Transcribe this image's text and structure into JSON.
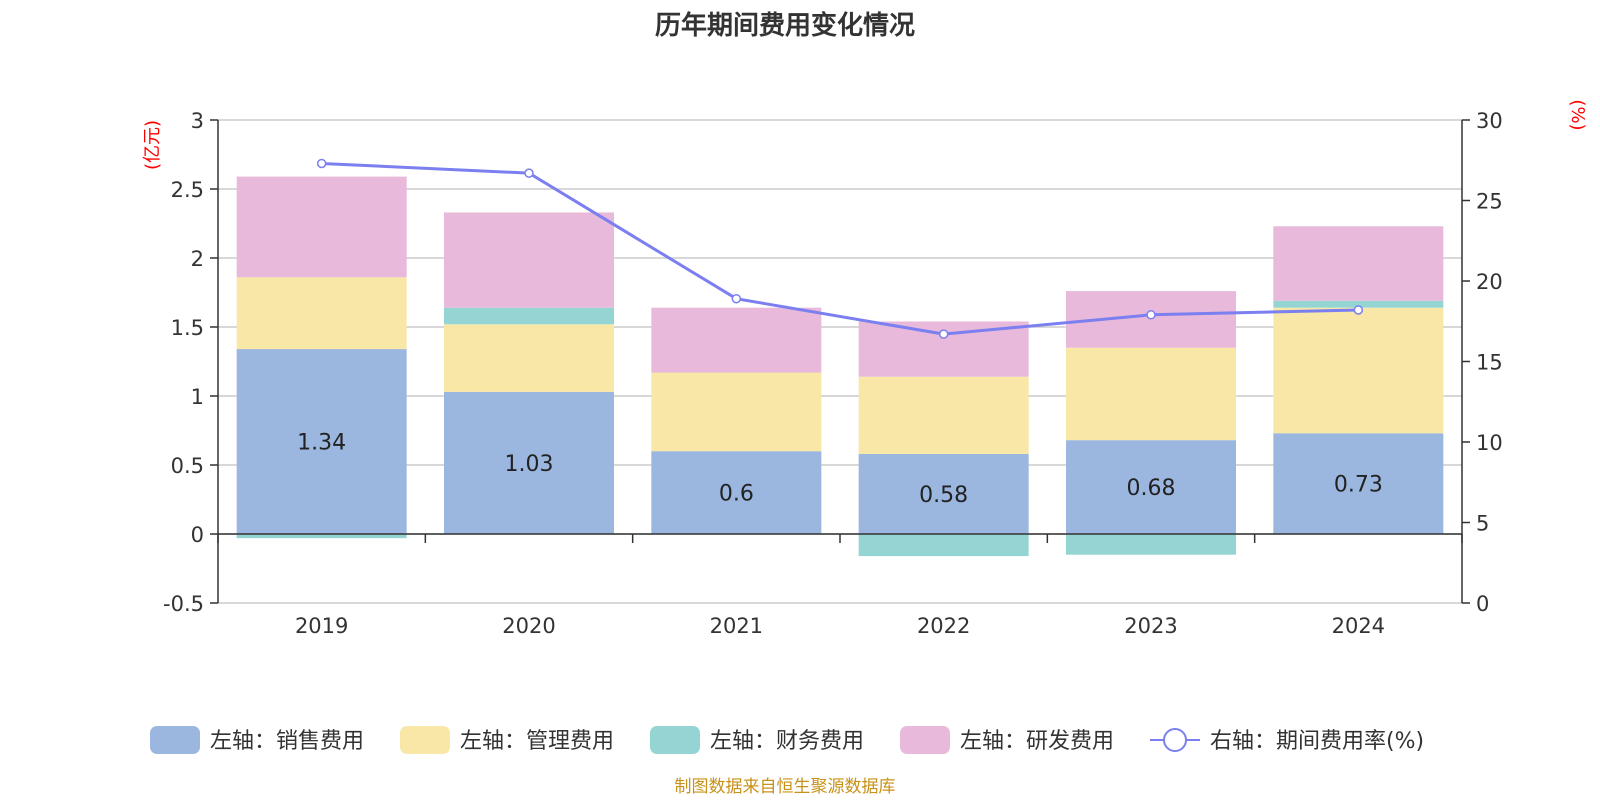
{
  "chart_data": {
    "type": "bar",
    "stacked": true,
    "title": "历年期间费用变化情况",
    "categories": [
      "2019",
      "2020",
      "2021",
      "2022",
      "2023",
      "2024"
    ],
    "left_axis": {
      "unit": "(亿元)",
      "ylim": [
        -0.5,
        3
      ],
      "ticks": [
        "-0.5",
        "0",
        "0.5",
        "1",
        "1.5",
        "2",
        "2.5",
        "3"
      ]
    },
    "right_axis": {
      "unit": "(%)",
      "ylim": [
        0,
        30
      ],
      "ticks": [
        "0",
        "5",
        "10",
        "15",
        "20",
        "25",
        "30"
      ]
    },
    "series": [
      {
        "name": "左轴：销售费用",
        "color": "#9bb7e0",
        "values": [
          1.34,
          1.03,
          0.6,
          0.58,
          0.68,
          0.73
        ],
        "labels": [
          "1.34",
          "1.03",
          "0.6",
          "0.58",
          "0.68",
          "0.73"
        ]
      },
      {
        "name": "左轴：管理费用",
        "color": "#f8e7a6",
        "values": [
          0.52,
          0.49,
          0.57,
          0.56,
          0.67,
          0.91
        ]
      },
      {
        "name": "左轴：财务费用",
        "color": "#94d5d3",
        "values": [
          -0.03,
          0.12,
          0.0,
          -0.16,
          -0.15,
          0.05
        ]
      },
      {
        "name": "左轴：研发费用",
        "color": "#e8b9da",
        "values": [
          0.73,
          0.69,
          0.47,
          0.4,
          0.41,
          0.54
        ]
      }
    ],
    "line": {
      "name": "右轴：期间费用率(%)",
      "color": "#7b7ff0",
      "values": [
        27.3,
        26.7,
        18.9,
        16.7,
        17.9,
        18.2
      ]
    }
  },
  "source": "制图数据来自恒生聚源数据库"
}
